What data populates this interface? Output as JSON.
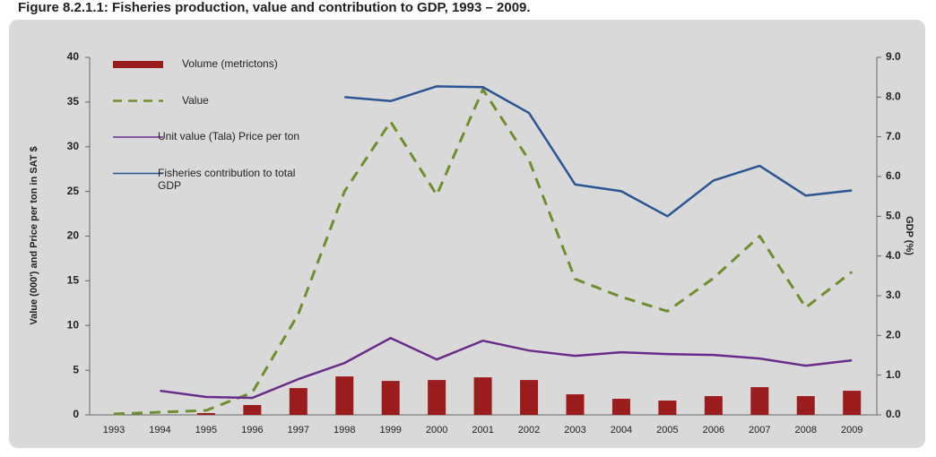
{
  "chart_data": {
    "type": "bar_line",
    "title": "Figure 8.2.1.1: Fisheries production, value and contribution to GDP, 1993 – 2009.",
    "y_label": "Value (000') and Price per ton in SAT $",
    "y2_label": "GDP (%)",
    "categories": [
      "1993",
      "1994",
      "1995",
      "1996",
      "1997",
      "1998",
      "1999",
      "2000",
      "2001",
      "2002",
      "2003",
      "2004",
      "2005",
      "2006",
      "2007",
      "2008",
      "2009"
    ],
    "series": [
      {
        "name": "Volume (metrictons)",
        "type": "bar",
        "color": "#9b1c1c",
        "values": [
          0,
          0,
          0.2,
          1.1,
          3.0,
          4.3,
          3.8,
          3.9,
          4.2,
          3.9,
          2.3,
          1.8,
          1.6,
          2.1,
          3.1,
          2.1,
          2.7
        ]
      },
      {
        "name": "Value",
        "type": "line",
        "dashed": true,
        "color": "#6f8f2e",
        "values": [
          0.1,
          0.3,
          0.5,
          2.5,
          11.3,
          25.0,
          32.8,
          24.6,
          36.4,
          28.5,
          15.2,
          13.2,
          11.6,
          15.3,
          20.0,
          12.0,
          16.0
        ]
      },
      {
        "name": "Unit value (Tala) Price per ton",
        "type": "line",
        "color": "#6a2c8a",
        "values": [
          null,
          2.7,
          2.0,
          1.9,
          4.0,
          5.8,
          8.6,
          6.2,
          8.3,
          7.2,
          6.6,
          7.0,
          6.8,
          6.7,
          6.3,
          5.5,
          6.1
        ]
      },
      {
        "name": "Fisheries contribution to total GDP",
        "type": "line",
        "axis": "y2",
        "color": "#2b5592",
        "values": [
          null,
          null,
          null,
          null,
          null,
          8.0,
          7.9,
          8.27,
          8.25,
          7.6,
          5.8,
          5.63,
          5.0,
          5.9,
          6.27,
          5.52,
          5.65
        ]
      }
    ],
    "ylim": [
      0,
      40
    ],
    "yticks": [
      0,
      5,
      10,
      15,
      20,
      25,
      30,
      35,
      40
    ],
    "y2lim": [
      0,
      9
    ],
    "y2ticks": [
      {
        "value": 0,
        "label": "0.0"
      },
      {
        "value": 1,
        "label": "1.0"
      },
      {
        "value": 2,
        "label": "2.0"
      },
      {
        "value": 3,
        "label": "3.0"
      },
      {
        "value": 4,
        "label": "4.0"
      },
      {
        "value": 5,
        "label": "5.0"
      },
      {
        "value": 6,
        "label": "6.0"
      },
      {
        "value": 7,
        "label": "7.0"
      },
      {
        "value": 8,
        "label": "8.0"
      },
      {
        "value": 9,
        "label": "9.0"
      }
    ],
    "legend": "upper left"
  }
}
